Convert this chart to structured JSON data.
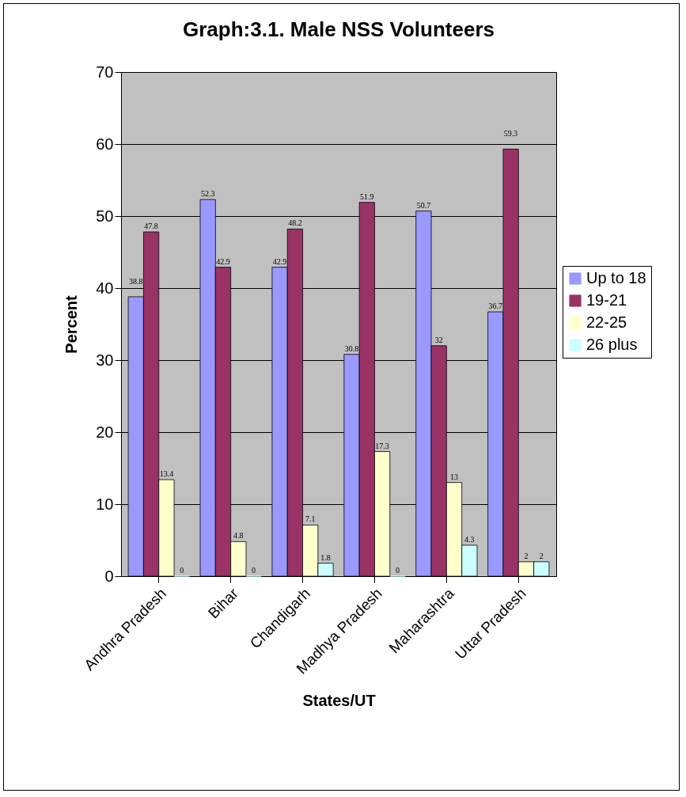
{
  "chart_data": {
    "type": "bar",
    "title": "Graph:3.1. Male NSS Volunteers",
    "xlabel": "States/UT",
    "ylabel": "Percent",
    "categories": [
      "Andhra Pradesh",
      "Bihar",
      "Chandigarh",
      "Madhya Pradesh",
      "Maharashtra",
      "Uttar Pradesh"
    ],
    "series": [
      {
        "name": "Up to 18",
        "color": "#9999ff",
        "values": [
          38.8,
          52.3,
          42.9,
          30.8,
          50.7,
          36.7
        ]
      },
      {
        "name": "19-21",
        "color": "#993366",
        "values": [
          47.8,
          42.9,
          48.2,
          51.9,
          32,
          59.3
        ]
      },
      {
        "name": "22-25",
        "color": "#ffffcc",
        "values": [
          13.4,
          4.8,
          7.1,
          17.3,
          13,
          2
        ]
      },
      {
        "name": "26 plus",
        "color": "#ccffff",
        "values": [
          0,
          0,
          1.8,
          0,
          4.3,
          2
        ]
      }
    ],
    "ylim": [
      0,
      70
    ],
    "yticks": [
      0,
      10,
      20,
      30,
      40,
      50,
      60,
      70
    ],
    "grid": "y",
    "legend": "right",
    "data_labels": true
  }
}
